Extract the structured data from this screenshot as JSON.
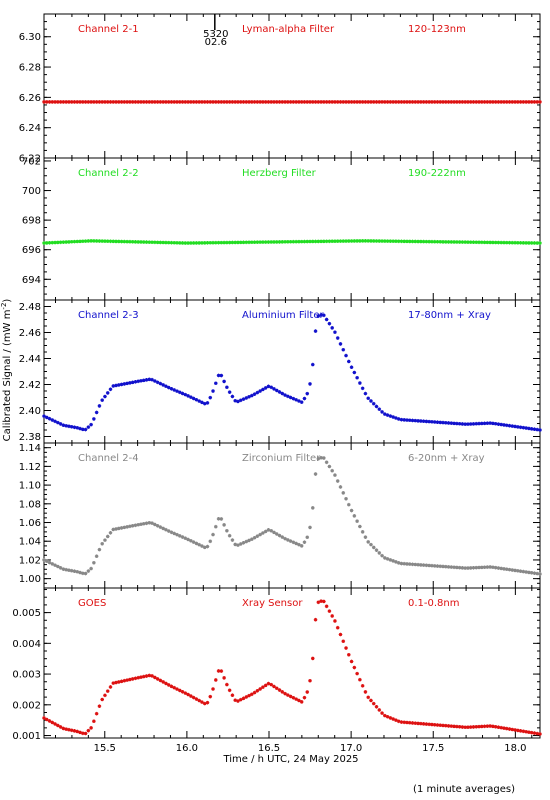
{
  "chart_data": {
    "type": "scatter",
    "marker": "asterisk",
    "shared_xlabel": "Time / h UTC, 24 May 2025",
    "shared_ylabel": "Calibrated Signal / (mW m",
    "shared_ylabel_sup": "-2",
    "shared_ylabel_close": ")",
    "footnote": "(1 minute averages)",
    "xlim": [
      15.13,
      18.15
    ],
    "x_ticks": [
      "15.5",
      "16.0",
      "16.5",
      "17.0",
      "17.5",
      "18.0"
    ],
    "marker_annotation": {
      "x": 16.17,
      "line1": "5320",
      "line2": "02.6"
    },
    "panels": [
      {
        "name": "Channel 2-1",
        "filter": "Lyman-alpha Filter",
        "band": "120-123nm",
        "color": "#dd1111",
        "ylim": [
          6.22,
          6.315
        ],
        "y_ticks": [
          "6.22",
          "6.24",
          "6.26",
          "6.28",
          "6.30"
        ],
        "profile": "flat",
        "level": 6.257,
        "series_points": [
          [
            15.13,
            6.257
          ],
          [
            16.0,
            6.257
          ],
          [
            17.0,
            6.257
          ],
          [
            18.15,
            6.257
          ]
        ]
      },
      {
        "name": "Channel 2-2",
        "filter": "Herzberg Filter",
        "band": "190-222nm",
        "color": "#22dd22",
        "ylim": [
          692.6,
          702.2
        ],
        "y_ticks": [
          "694",
          "696",
          "698",
          "700",
          "702"
        ],
        "profile": "flat",
        "level": 696.45,
        "series_points": [
          [
            15.13,
            696.45
          ],
          [
            15.42,
            696.6
          ],
          [
            16.0,
            696.45
          ],
          [
            17.08,
            696.6
          ],
          [
            18.15,
            696.45
          ]
        ]
      },
      {
        "name": "Channel 2-3",
        "filter": "Aluminium Filter",
        "band": "17-80nm + Xray",
        "color": "#1111cc",
        "ylim": [
          2.375,
          2.485
        ],
        "y_ticks": [
          "2.38",
          "2.40",
          "2.42",
          "2.44",
          "2.46",
          "2.48"
        ],
        "profile": "flare",
        "base": 2.385,
        "peak": 2.474
      },
      {
        "name": "Channel 2-4",
        "filter": "Zirconium Filter",
        "band": "6-20nm + Xray",
        "color": "#888888",
        "ylim": [
          0.99,
          1.145
        ],
        "y_ticks": [
          "1.00",
          "1.02",
          "1.04",
          "1.06",
          "1.08",
          "1.10",
          "1.12",
          "1.14"
        ],
        "profile": "flare",
        "base": 1.005,
        "peak": 1.13
      },
      {
        "name": "GOES",
        "filter": "Xray Sensor",
        "band": "0.1-0.8nm",
        "color": "#dd1111",
        "ylim": [
          0.00092,
          0.0058
        ],
        "y_ticks": [
          "0.001",
          "0.002",
          "0.003",
          "0.004",
          "0.005"
        ],
        "profile": "flare",
        "base": 0.00105,
        "peak": 0.0054
      }
    ],
    "flare_profile_points": [
      [
        15.13,
        0.12
      ],
      [
        15.25,
        0.04
      ],
      [
        15.33,
        0.02
      ],
      [
        15.38,
        0.0
      ],
      [
        15.42,
        0.05
      ],
      [
        15.48,
        0.25
      ],
      [
        15.55,
        0.38
      ],
      [
        15.7,
        0.42
      ],
      [
        15.78,
        0.44
      ],
      [
        15.9,
        0.36
      ],
      [
        16.0,
        0.3
      ],
      [
        16.12,
        0.22
      ],
      [
        16.15,
        0.3
      ],
      [
        16.2,
        0.5
      ],
      [
        16.25,
        0.35
      ],
      [
        16.3,
        0.24
      ],
      [
        16.4,
        0.3
      ],
      [
        16.5,
        0.38
      ],
      [
        16.6,
        0.3
      ],
      [
        16.7,
        0.24
      ],
      [
        16.73,
        0.3
      ],
      [
        16.75,
        0.4
      ],
      [
        16.77,
        0.6
      ],
      [
        16.79,
        0.98
      ],
      [
        16.83,
        1.0
      ],
      [
        16.9,
        0.85
      ],
      [
        17.0,
        0.55
      ],
      [
        17.1,
        0.28
      ],
      [
        17.2,
        0.14
      ],
      [
        17.3,
        0.09
      ],
      [
        17.5,
        0.07
      ],
      [
        17.7,
        0.05
      ],
      [
        17.85,
        0.06
      ],
      [
        18.0,
        0.03
      ],
      [
        18.15,
        0.0
      ]
    ]
  }
}
